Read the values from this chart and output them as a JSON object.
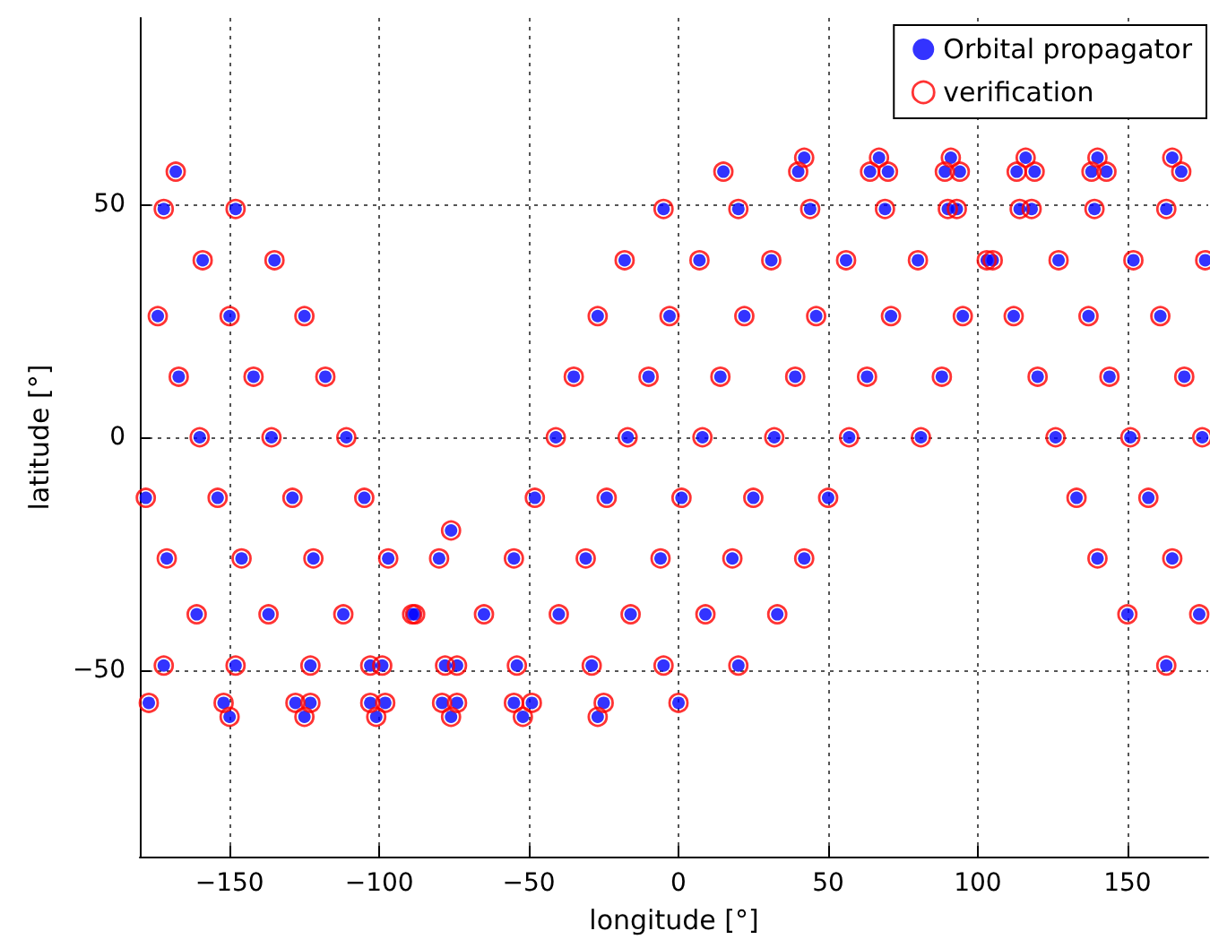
{
  "chart_data": {
    "type": "scatter",
    "xlabel": "longitude [°]",
    "ylabel": "latitude [°]",
    "xlim": [
      -180,
      177
    ],
    "xticks": [
      -150,
      -100,
      -50,
      0,
      50,
      100,
      150
    ],
    "ylim": [
      -90,
      90
    ],
    "yticks": [
      -50,
      0,
      50
    ],
    "grid": true,
    "legend": "top right",
    "marker": "circle",
    "series": [
      {
        "name": "Orbital propagator",
        "color": "#0000ff",
        "x": [
          81,
          88,
          95,
          105,
          118,
          138,
          165,
          -168,
          -148,
          -135,
          -125,
          -118,
          -111,
          -105,
          -97,
          -88,
          -74,
          -55,
          -27,
          0,
          20,
          33,
          42,
          50,
          57,
          63,
          71,
          80,
          93,
          113,
          140,
          168,
          -172,
          -159,
          -150,
          -142,
          -136,
          -129,
          -122,
          -112,
          -99,
          -79,
          -52,
          -25,
          -5,
          9,
          18,
          25,
          32,
          39,
          46,
          56,
          69,
          89,
          116,
          143,
          163,
          176,
          -174,
          -167,
          -160,
          -154,
          -146,
          -137,
          -123,
          -103,
          -76,
          -49,
          -29,
          -16,
          -6,
          1,
          8,
          14,
          22,
          31,
          44,
          64,
          91,
          119,
          139,
          152,
          161,
          169,
          175,
          -178,
          -171,
          -161,
          -148,
          -128,
          -101,
          -74,
          -54,
          -40,
          -31,
          -24,
          -17,
          -10,
          -3,
          7,
          20,
          40,
          67,
          94,
          114,
          127,
          137,
          144,
          151,
          157,
          165,
          174,
          -172,
          -152,
          -125,
          -98,
          -78,
          -65,
          -55,
          -48,
          -41,
          -35,
          -27,
          -18,
          -5,
          15,
          42,
          70,
          90,
          103,
          112,
          120,
          126,
          133,
          140,
          150,
          163,
          -177,
          -150,
          -123,
          -103,
          -89,
          -80,
          -76
        ],
        "values": [
          0,
          13,
          26,
          38,
          49,
          57,
          60,
          57,
          49,
          38,
          26,
          13,
          0,
          -13,
          -26,
          -38,
          -49,
          -57,
          -60,
          -57,
          -49,
          -38,
          -26,
          -13,
          0,
          13,
          26,
          38,
          49,
          57,
          60,
          57,
          49,
          38,
          26,
          13,
          0,
          -13,
          -26,
          -38,
          -49,
          -57,
          -60,
          -57,
          -49,
          -38,
          -26,
          -13,
          0,
          13,
          26,
          38,
          49,
          57,
          60,
          57,
          49,
          38,
          26,
          13,
          0,
          -13,
          -26,
          -38,
          -49,
          -57,
          -60,
          -57,
          -49,
          -38,
          -26,
          -13,
          0,
          13,
          26,
          38,
          49,
          57,
          60,
          57,
          49,
          38,
          26,
          13,
          0,
          -13,
          -26,
          -38,
          -49,
          -57,
          -60,
          -57,
          -49,
          -38,
          -26,
          -13,
          0,
          13,
          26,
          38,
          49,
          57,
          60,
          57,
          49,
          38,
          26,
          13,
          0,
          -13,
          -26,
          -38,
          -49,
          -57,
          -60,
          -57,
          -49,
          -38,
          -26,
          -13,
          0,
          13,
          26,
          38,
          49,
          57,
          60,
          57,
          49,
          38,
          26,
          13,
          0,
          -13,
          -26,
          -38,
          -49,
          -57,
          -60,
          -57,
          -49,
          -38,
          -26,
          -20
        ]
      },
      {
        "name": "verification",
        "color": "#ff0000",
        "marker": "open_circle",
        "x": [
          81,
          88,
          95,
          105,
          118,
          138,
          165,
          -168,
          -148,
          -135,
          -125,
          -118,
          -111,
          -105,
          -97,
          -88,
          -74,
          -55,
          -27,
          0,
          20,
          33,
          42,
          50,
          57,
          63,
          71,
          80,
          93,
          113,
          140,
          168,
          -172,
          -159,
          -150,
          -142,
          -136,
          -129,
          -122,
          -112,
          -99,
          -79,
          -52,
          -25,
          -5,
          9,
          18,
          25,
          32,
          39,
          46,
          56,
          69,
          89,
          116,
          143,
          163,
          176,
          -174,
          -167,
          -160,
          -154,
          -146,
          -137,
          -123,
          -103,
          -76,
          -49,
          -29,
          -16,
          -6,
          1,
          8,
          14,
          22,
          31,
          44,
          64,
          91,
          119,
          139,
          152,
          161,
          169,
          175,
          -178,
          -171,
          -161,
          -148,
          -128,
          -101,
          -74,
          -54,
          -40,
          -31,
          -24,
          -17,
          -10,
          -3,
          7,
          20,
          40,
          67,
          94,
          114,
          127,
          137,
          144,
          151,
          157,
          165,
          174,
          -172,
          -152,
          -125,
          -98,
          -78,
          -65,
          -55,
          -48,
          -41,
          -35,
          -27,
          -18,
          -5,
          15,
          42,
          70,
          90,
          103,
          112,
          120,
          126,
          133,
          140,
          150,
          163,
          -177,
          -150,
          -123,
          -103,
          -89,
          -80,
          -76
        ],
        "values": [
          0,
          13,
          26,
          38,
          49,
          57,
          60,
          57,
          49,
          38,
          26,
          13,
          0,
          -13,
          -26,
          -38,
          -49,
          -57,
          -60,
          -57,
          -49,
          -38,
          -26,
          -13,
          0,
          13,
          26,
          38,
          49,
          57,
          60,
          57,
          49,
          38,
          26,
          13,
          0,
          -13,
          -26,
          -38,
          -49,
          -57,
          -60,
          -57,
          -49,
          -38,
          -26,
          -13,
          0,
          13,
          26,
          38,
          49,
          57,
          60,
          57,
          49,
          38,
          26,
          13,
          0,
          -13,
          -26,
          -38,
          -49,
          -57,
          -60,
          -57,
          -49,
          -38,
          -26,
          -13,
          0,
          13,
          26,
          38,
          49,
          57,
          60,
          57,
          49,
          38,
          26,
          13,
          0,
          -13,
          -26,
          -38,
          -49,
          -57,
          -60,
          -57,
          -49,
          -38,
          -26,
          -13,
          0,
          13,
          26,
          38,
          49,
          57,
          60,
          57,
          49,
          38,
          26,
          13,
          0,
          -13,
          -26,
          -38,
          -49,
          -57,
          -60,
          -57,
          -49,
          -38,
          -26,
          -13,
          0,
          13,
          26,
          38,
          49,
          57,
          60,
          57,
          49,
          38,
          26,
          13,
          0,
          -13,
          -26,
          -38,
          -49,
          -57,
          -60,
          -57,
          -49,
          -38,
          -26,
          -20
        ]
      }
    ]
  }
}
